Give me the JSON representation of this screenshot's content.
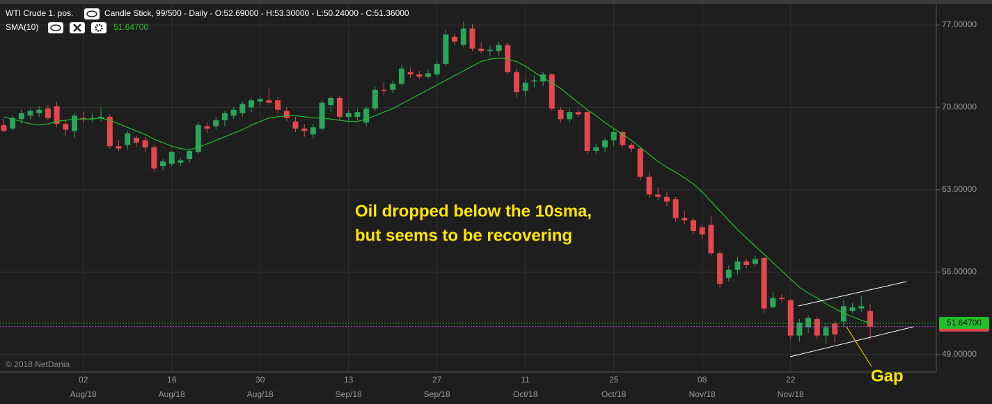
{
  "chart_data": {
    "type": "candlestick",
    "title": "WTI Crude 1. pos.",
    "subtitle": "Candle Stick, 99/500 - Daily - O:52.69000 - H:53.30000 - L:50.24000 - C:51.36000",
    "copyright": "© 2018 NetDania",
    "annotations": [
      "Oil dropped below the 10sma,",
      "but seems to be recovering",
      "Gap"
    ],
    "categories": [
      null,
      null,
      null,
      null,
      null,
      null,
      null,
      null,
      null,
      "02",
      null,
      null,
      null,
      null,
      null,
      null,
      null,
      null,
      null,
      "16",
      null,
      null,
      null,
      null,
      null,
      null,
      null,
      null,
      null,
      "30",
      null,
      null,
      null,
      null,
      null,
      null,
      null,
      null,
      null,
      "13",
      null,
      null,
      null,
      null,
      null,
      null,
      null,
      null,
      null,
      "27",
      null,
      null,
      null,
      null,
      null,
      null,
      null,
      null,
      null,
      "11",
      null,
      null,
      null,
      null,
      null,
      null,
      null,
      null,
      null,
      "25",
      null,
      null,
      null,
      null,
      null,
      null,
      null,
      null,
      null,
      "08",
      null,
      null,
      null,
      null,
      null,
      null,
      null,
      null,
      null,
      "22",
      null,
      null,
      null,
      null,
      null,
      null,
      null,
      null,
      null
    ],
    "category_months": [
      null,
      null,
      null,
      null,
      null,
      null,
      null,
      null,
      null,
      "Aug/18",
      null,
      null,
      null,
      null,
      null,
      null,
      null,
      null,
      null,
      "Aug/18",
      null,
      null,
      null,
      null,
      null,
      null,
      null,
      null,
      null,
      "Aug/18",
      null,
      null,
      null,
      null,
      null,
      null,
      null,
      null,
      null,
      "Sep/18",
      null,
      null,
      null,
      null,
      null,
      null,
      null,
      null,
      null,
      "Sep/18",
      null,
      null,
      null,
      null,
      null,
      null,
      null,
      null,
      null,
      "Oct/18",
      null,
      null,
      null,
      null,
      null,
      null,
      null,
      null,
      null,
      "Oct/18",
      null,
      null,
      null,
      null,
      null,
      null,
      null,
      null,
      null,
      "Nov/18",
      null,
      null,
      null,
      null,
      null,
      null,
      null,
      null,
      null,
      "Nov/18",
      null,
      null,
      null,
      null,
      null,
      null,
      null,
      null,
      null
    ],
    "series": [
      {
        "name": "WTI Crude 1. pos.",
        "up_color": "#2aa55c",
        "down_color": "#e2484d",
        "open": [
          68.5,
          68.2,
          69.0,
          69.3,
          69.5,
          69.9,
          70.1,
          68.6,
          68.0,
          69.1,
          69.0,
          69.1,
          69.2,
          66.7,
          66.8,
          67.4,
          67.2,
          66.6,
          65.0,
          65.2,
          65.3,
          65.6,
          66.2,
          68.4,
          68.4,
          68.9,
          69.3,
          69.5,
          70.0,
          70.5,
          70.6,
          70.6,
          69.7,
          68.8,
          68.2,
          67.7,
          68.2,
          70.2,
          70.8,
          69.2,
          69.2,
          68.7,
          69.9,
          71.5,
          71.5,
          72.0,
          73.0,
          72.8,
          72.6,
          72.8,
          73.7,
          76.0,
          75.3,
          76.7,
          75.0,
          74.8,
          74.8,
          75.3,
          73.0,
          71.4,
          72.2,
          72.2,
          72.8,
          69.8,
          69.0,
          69.6,
          69.6,
          66.3,
          66.6,
          67.2,
          67.9,
          66.8,
          66.5,
          64.1,
          62.6,
          62.4,
          62.2,
          60.6,
          60.4,
          59.8,
          60.0,
          57.6,
          55.5,
          56.2,
          56.9,
          56.7,
          57.2,
          53.0,
          53.8,
          53.6,
          50.6,
          51.3,
          52.0,
          50.6,
          51.6,
          51.8,
          52.7,
          52.9,
          52.69
        ],
        "high": [
          69.0,
          69.3,
          69.8,
          69.9,
          70.1,
          70.2,
          70.5,
          68.9,
          69.5,
          69.6,
          69.5,
          70.0,
          69.4,
          67.2,
          68.0,
          67.6,
          67.5,
          66.8,
          65.6,
          66.3,
          65.7,
          66.5,
          68.8,
          68.7,
          69.2,
          69.7,
          70.0,
          70.5,
          70.8,
          70.9,
          71.6,
          70.9,
          70.0,
          69.2,
          68.6,
          68.6,
          70.6,
          71.0,
          71.0,
          69.8,
          69.9,
          70.1,
          71.8,
          72.1,
          72.3,
          73.6,
          73.4,
          73.1,
          73.2,
          74.0,
          76.6,
          76.3,
          77.3,
          77.1,
          75.5,
          75.3,
          75.6,
          75.5,
          73.3,
          72.4,
          72.7,
          73.0,
          72.9,
          70.0,
          69.9,
          69.8,
          69.7,
          66.9,
          67.4,
          68.2,
          68.0,
          67.0,
          66.6,
          64.5,
          63.2,
          62.8,
          62.4,
          61.2,
          60.6,
          60.0,
          60.8,
          57.8,
          56.6,
          57.3,
          57.1,
          57.4,
          57.3,
          54.3,
          54.1,
          53.7,
          52.0,
          52.3,
          52.2,
          51.6,
          51.8,
          53.6,
          53.4,
          54.0,
          53.3
        ],
        "low": [
          67.9,
          68.0,
          68.6,
          69.0,
          69.2,
          68.9,
          68.3,
          67.6,
          67.4,
          68.7,
          68.7,
          68.8,
          66.5,
          66.3,
          66.4,
          66.6,
          66.2,
          64.5,
          64.6,
          65.0,
          65.0,
          65.3,
          66.0,
          67.8,
          68.1,
          68.4,
          69.0,
          69.2,
          69.6,
          70.1,
          70.2,
          69.5,
          68.8,
          67.9,
          67.5,
          67.3,
          68.0,
          69.6,
          68.9,
          68.8,
          68.9,
          68.4,
          69.7,
          71.0,
          71.2,
          71.8,
          72.5,
          72.4,
          72.4,
          72.6,
          73.5,
          75.3,
          75.1,
          74.8,
          74.6,
          74.4,
          74.4,
          72.8,
          70.8,
          70.9,
          71.7,
          71.8,
          69.7,
          68.7,
          68.7,
          69.2,
          66.0,
          66.0,
          66.2,
          66.7,
          66.6,
          66.2,
          63.8,
          62.3,
          62.1,
          61.6,
          60.3,
          60.1,
          59.2,
          58.8,
          57.4,
          54.7,
          55.2,
          55.8,
          56.3,
          56.5,
          52.5,
          52.9,
          53.4,
          50.3,
          50.1,
          50.8,
          50.3,
          49.9,
          50.0,
          51.3,
          52.5,
          52.6,
          50.24
        ],
        "close": [
          68.0,
          69.1,
          69.5,
          69.7,
          69.8,
          69.1,
          68.6,
          68.1,
          69.3,
          69.0,
          69.1,
          69.2,
          66.7,
          66.5,
          67.8,
          67.0,
          66.6,
          64.8,
          65.4,
          66.2,
          65.5,
          66.3,
          68.5,
          68.2,
          68.9,
          69.5,
          69.8,
          70.3,
          70.6,
          70.7,
          70.4,
          69.8,
          69.1,
          68.2,
          68.0,
          68.3,
          70.4,
          70.8,
          69.2,
          69.5,
          69.6,
          69.9,
          71.5,
          71.4,
          72.0,
          73.3,
          72.8,
          72.6,
          72.9,
          73.7,
          76.2,
          75.6,
          76.7,
          75.0,
          74.8,
          74.9,
          75.3,
          73.0,
          71.3,
          72.1,
          72.3,
          72.8,
          69.9,
          69.0,
          69.6,
          69.4,
          66.3,
          66.6,
          67.2,
          67.9,
          66.8,
          66.5,
          64.1,
          62.6,
          62.4,
          62.0,
          60.6,
          60.4,
          59.5,
          59.2,
          57.6,
          55.0,
          56.2,
          56.9,
          56.6,
          57.1,
          52.9,
          53.8,
          53.7,
          50.6,
          51.7,
          52.1,
          50.6,
          51.3,
          50.7,
          53.1,
          53.0,
          53.1,
          51.36
        ]
      },
      {
        "name": "SMA(10)",
        "color": "#22c02a",
        "values": [
          69.2,
          69.0,
          68.8,
          68.6,
          68.5,
          68.6,
          68.8,
          68.9,
          69.0,
          69.0,
          69.0,
          69.1,
          68.9,
          68.6,
          68.3,
          68.0,
          67.7,
          67.3,
          67.0,
          66.7,
          66.5,
          66.4,
          66.6,
          66.9,
          67.2,
          67.5,
          67.8,
          68.1,
          68.5,
          68.8,
          69.1,
          69.2,
          69.3,
          69.3,
          69.2,
          69.1,
          69.1,
          69.0,
          68.9,
          68.8,
          68.8,
          69.0,
          69.3,
          69.6,
          69.9,
          70.3,
          70.7,
          71.1,
          71.5,
          71.9,
          72.3,
          72.7,
          73.1,
          73.5,
          73.9,
          74.1,
          74.2,
          74.1,
          73.9,
          73.5,
          73.0,
          72.5,
          72.1,
          71.6,
          71.0,
          70.4,
          69.8,
          69.3,
          68.7,
          68.2,
          67.7,
          67.2,
          66.6,
          66.0,
          65.4,
          64.9,
          64.5,
          64.0,
          63.5,
          62.8,
          62.0,
          61.2,
          60.4,
          59.6,
          58.9,
          58.2,
          57.5,
          56.8,
          56.1,
          55.4,
          54.7,
          54.2,
          53.8,
          53.3,
          52.9,
          52.5,
          52.2,
          51.9,
          51.647
        ],
        "value_labels": [
          null,
          null,
          null,
          null,
          null,
          null,
          null,
          null,
          null,
          null,
          null,
          null,
          null,
          null,
          null,
          null,
          null,
          null,
          null,
          null,
          null,
          null,
          null,
          null,
          null,
          null,
          null,
          null,
          null,
          null,
          null,
          null,
          null,
          null,
          null,
          null,
          null,
          null,
          null,
          null,
          null,
          null,
          null,
          null,
          null,
          null,
          null,
          null,
          null,
          null,
          null,
          null,
          null,
          null,
          null,
          null,
          null,
          null,
          null,
          null,
          null,
          null,
          null,
          null,
          null,
          null,
          null,
          null,
          null,
          null,
          null,
          null,
          null,
          null,
          null,
          null,
          null,
          null,
          null,
          null,
          null,
          null,
          null,
          null,
          null,
          null,
          null,
          null,
          null,
          null,
          null,
          null,
          null,
          null,
          null,
          null,
          null,
          null,
          "51.64700"
        ]
      }
    ],
    "ylim": [
      47.5,
      79.13
    ],
    "yticks": [
      {
        "value": 49,
        "label": "49.00000"
      },
      {
        "value": 56,
        "label": "56.00000"
      },
      {
        "value": 63,
        "label": "63.00000"
      },
      {
        "value": 70,
        "label": "70.00000"
      },
      {
        "value": 77,
        "label": "77.00000"
      }
    ],
    "grid": true,
    "close_line_color": "#b94fd0"
  }
}
